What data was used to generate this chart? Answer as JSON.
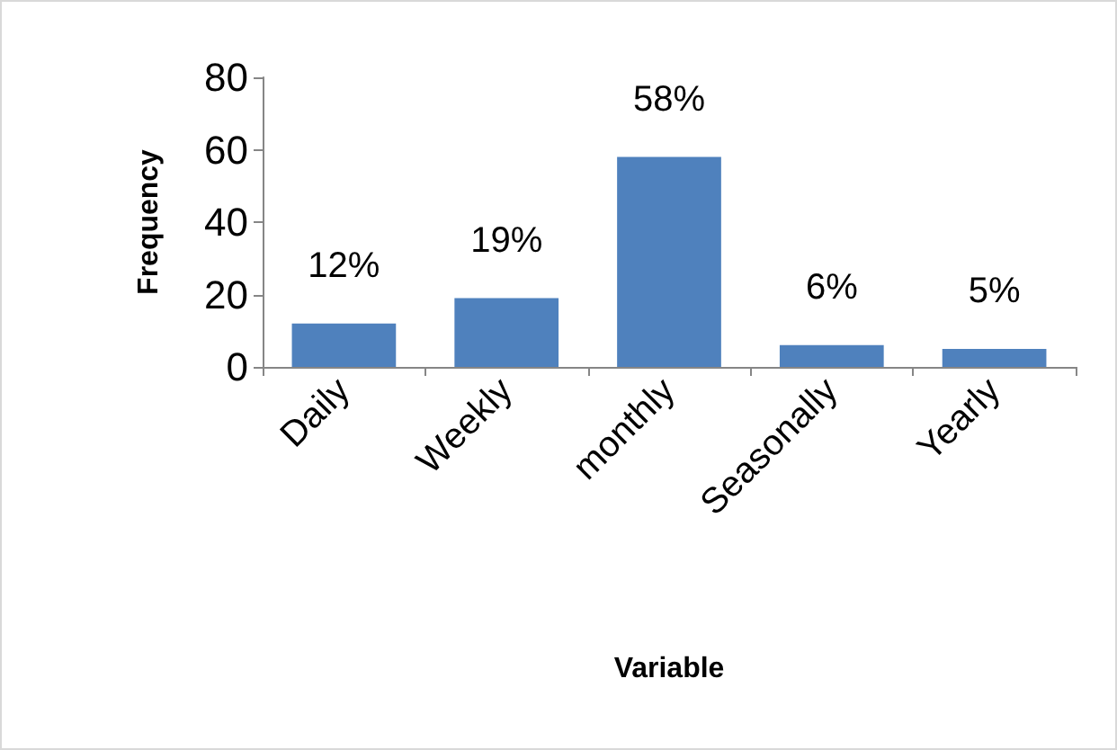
{
  "chart_data": {
    "type": "bar",
    "xlabel": "Variable",
    "ylabel": "Frequency",
    "categories": [
      "Daily",
      "Weekly",
      "monthly",
      "Seasonally",
      "Yearly"
    ],
    "values": [
      12,
      19,
      58,
      6,
      5
    ],
    "value_labels": [
      "12%",
      "19%",
      "58%",
      "6%",
      "5%"
    ],
    "color": "#4f81bd",
    "ylim": [
      0,
      80
    ],
    "yticks": [
      0,
      20,
      40,
      60,
      80
    ]
  }
}
